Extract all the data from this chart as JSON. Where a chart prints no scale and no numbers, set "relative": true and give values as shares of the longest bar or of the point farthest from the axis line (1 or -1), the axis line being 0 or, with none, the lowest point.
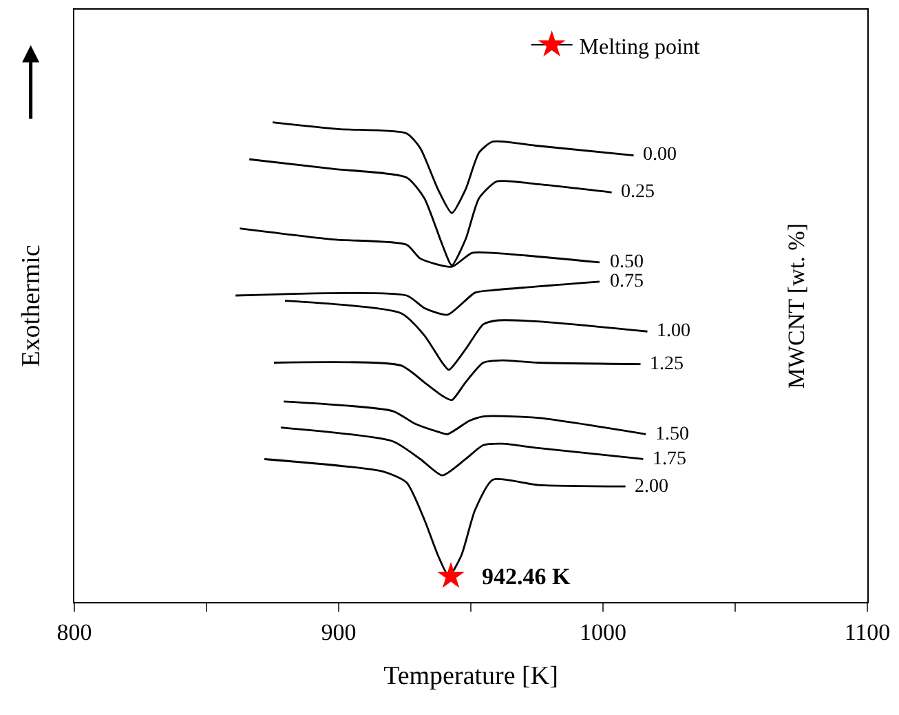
{
  "chart_data": {
    "type": "line",
    "relative": true,
    "xlabel": "Temperature [K]",
    "ylabel": "Exothermic",
    "xlim": [
      800,
      1100
    ],
    "xticks": [
      800,
      {
        "value": 850,
        "label": null
      },
      900,
      {
        "value": 950,
        "label": null
      },
      1000,
      {
        "value": 1050,
        "label": null
      },
      1100
    ],
    "grid": false,
    "legend": "top right",
    "tick_labels": "x",
    "annotations": [
      "MWCNT [wt. %]",
      {
        "text": "942.46 K",
        "x": 942.46,
        "y": 0.054
      }
    ],
    "series": [
      {
        "name": "0.00",
        "color": "#000000",
        "x": [
          875.0,
          899.8,
          925.7,
          930.9,
          937.6,
          942.8,
          948.0,
          953.1,
          958.3,
          975.4,
          1011.6
        ],
        "values": [
          1.0,
          0.986,
          0.977,
          0.946,
          0.86,
          0.811,
          0.86,
          0.937,
          0.96,
          0.951,
          0.931
        ]
      },
      {
        "name": "0.25",
        "color": "#000000",
        "x": [
          866.2,
          897.8,
          925.7,
          932.4,
          939.2,
          942.8,
          948.0,
          953.1,
          959.9,
          975.4,
          1003.3
        ],
        "values": [
          0.923,
          0.903,
          0.885,
          0.842,
          0.745,
          0.702,
          0.756,
          0.842,
          0.877,
          0.871,
          0.854
        ]
      },
      {
        "name": "0.50",
        "color": "#000000",
        "x": [
          862.6,
          897.8,
          925.7,
          930.9,
          942.8,
          950.5,
          965.0,
          998.7
        ],
        "values": [
          0.779,
          0.756,
          0.745,
          0.716,
          0.699,
          0.728,
          0.725,
          0.708
        ]
      },
      {
        "name": "0.75",
        "color": "#000000",
        "x": [
          861.0,
          925.7,
          932.4,
          941.2,
          951.6,
          958.3,
          998.7
        ],
        "values": [
          0.639,
          0.639,
          0.613,
          0.599,
          0.645,
          0.65,
          0.668
        ]
      },
      {
        "name": "1.00",
        "color": "#000000",
        "x": [
          879.7,
          923.6,
          932.4,
          939.2,
          941.7,
          948.0,
          954.7,
          959.9,
          975.4,
          1016.8
        ],
        "values": [
          0.628,
          0.602,
          0.556,
          0.499,
          0.484,
          0.527,
          0.579,
          0.587,
          0.585,
          0.564
        ]
      },
      {
        "name": "1.25",
        "color": "#000000",
        "x": [
          875.5,
          923.6,
          932.4,
          939.2,
          942.8,
          948.0,
          954.7,
          961.9,
          975.4,
          1014.2
        ],
        "values": [
          0.499,
          0.493,
          0.458,
          0.43,
          0.421,
          0.458,
          0.499,
          0.504,
          0.499,
          0.496
        ]
      },
      {
        "name": "1.50",
        "color": "#000000",
        "x": [
          879.2,
          920.5,
          928.8,
          937.6,
          941.2,
          949.5,
          954.7,
          975.4,
          1016.2
        ],
        "values": [
          0.418,
          0.398,
          0.372,
          0.355,
          0.35,
          0.378,
          0.387,
          0.384,
          0.35
        ]
      },
      {
        "name": "1.75",
        "color": "#000000",
        "x": [
          878.1,
          920.5,
          930.9,
          939.2,
          948.0,
          954.7,
          961.9,
          975.4,
          1015.2
        ],
        "values": [
          0.364,
          0.335,
          0.298,
          0.264,
          0.298,
          0.327,
          0.33,
          0.321,
          0.298
        ]
      },
      {
        "name": "2.00",
        "color": "#000000",
        "x": [
          871.9,
          916.9,
          925.7,
          932.4,
          937.6,
          941.7,
          946.4,
          951.6,
          958.3,
          975.4,
          1008.5
        ],
        "values": [
          0.298,
          0.272,
          0.249,
          0.172,
          0.097,
          0.054,
          0.097,
          0.192,
          0.255,
          0.244,
          0.241
        ]
      },
      {
        "name": "Melting point",
        "type": "scatter",
        "color": "#ff0000",
        "marker": "star",
        "x": [
          942.46
        ],
        "values": [
          0.054
        ]
      }
    ]
  }
}
